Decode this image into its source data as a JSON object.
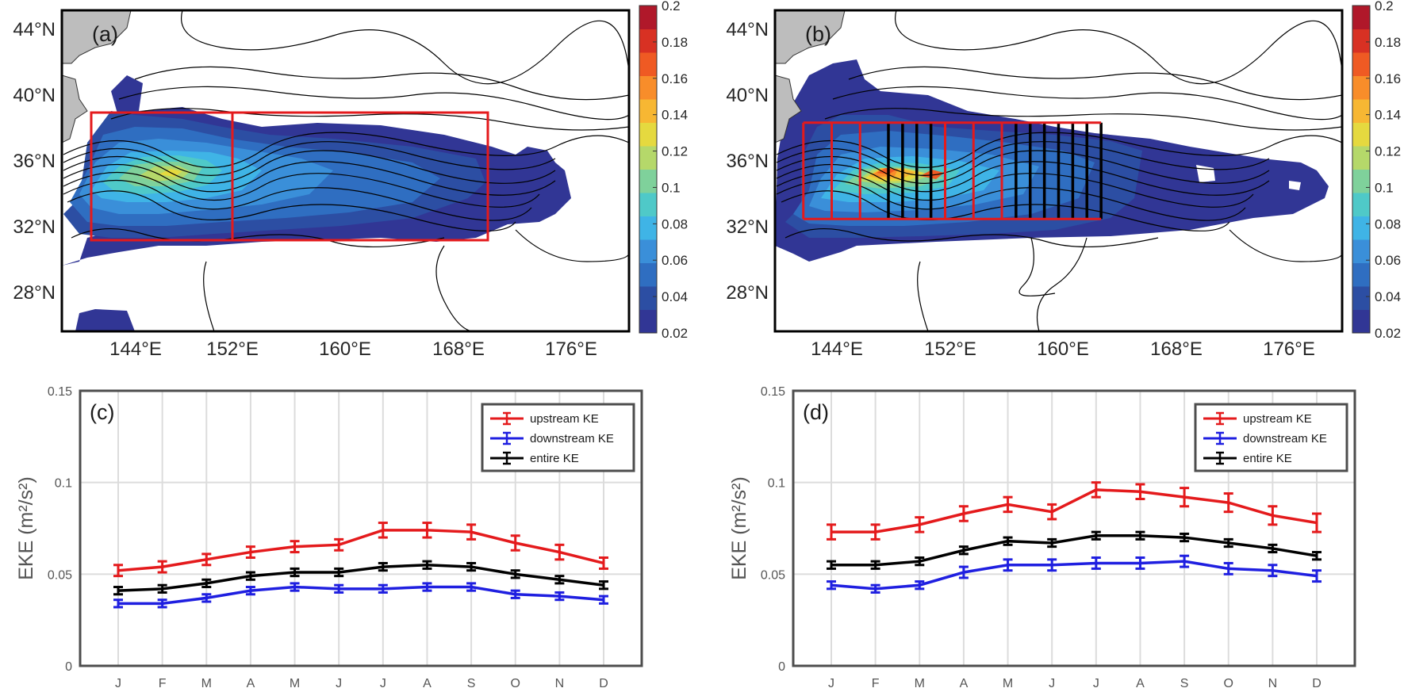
{
  "colors": {
    "upstream": "#e41a1c",
    "downstream": "#1f1fe0",
    "entire": "#000000",
    "box": "#e41a1c",
    "sections": "#000000",
    "land": "#bdbdbd",
    "frame_map": "#000000",
    "frame_line": "#4d4d4d",
    "colormap": [
      "#313695",
      "#2c4ea3",
      "#2f6ec1",
      "#3a8fd9",
      "#3fb4e6",
      "#4fc9c8",
      "#7fd19b",
      "#b5d86a",
      "#e5d93f",
      "#f7b733",
      "#f88d2a",
      "#ef5a23",
      "#d83123",
      "#b0182a"
    ]
  },
  "panels": {
    "a": {
      "tag": "(a)"
    },
    "b": {
      "tag": "(b)"
    },
    "c": {
      "tag": "(c)"
    },
    "d": {
      "tag": "(d)"
    }
  },
  "map_axes": {
    "lon_ticks": [
      "144°E",
      "152°E",
      "160°E",
      "168°E",
      "176°E"
    ],
    "lat_ticks": [
      "44°N",
      "40°N",
      "36°N",
      "32°N",
      "28°N"
    ],
    "colorbar_ticks": [
      "0.2",
      "0.18",
      "0.16",
      "0.14",
      "0.12",
      "0.1",
      "0.08",
      "0.06",
      "0.04",
      "0.02"
    ]
  },
  "chart_data": [
    {
      "panel": "a",
      "type": "heatmap",
      "tag": "(a)",
      "x_range_lon": [
        140,
        180
      ],
      "y_range_lat": [
        25,
        45
      ],
      "colorbar": {
        "min": 0.02,
        "max": 0.2,
        "step": 0.02
      },
      "note": "EKE map with contours; red boxes split upstream/downstream regions",
      "boxes": [
        {
          "lon": [
            142,
            152
          ],
          "lat": [
            31,
            39
          ]
        },
        {
          "lon": [
            152,
            170
          ],
          "lat": [
            31,
            39
          ]
        }
      ]
    },
    {
      "panel": "b",
      "type": "heatmap",
      "tag": "(b)",
      "x_range_lon": [
        140,
        180
      ],
      "y_range_lat": [
        25,
        45
      ],
      "colorbar": {
        "min": 0.02,
        "max": 0.2,
        "step": 0.02
      },
      "red_section_lons": [
        142,
        144,
        146,
        152,
        154,
        156
      ],
      "black_section_lons": [
        148,
        149,
        150,
        151,
        157,
        158,
        159,
        160,
        161,
        162,
        163
      ],
      "section_lat": [
        32,
        38
      ]
    },
    {
      "panel": "c",
      "type": "line",
      "tag": "(c)",
      "categories": [
        "J",
        "F",
        "M",
        "A",
        "M",
        "J",
        "J",
        "A",
        "S",
        "O",
        "N",
        "D"
      ],
      "ylabel": "EKE (m²/s²)",
      "ylim": [
        0,
        0.15
      ],
      "yticks": [
        "0",
        "0.05",
        "0.1",
        "0.15"
      ],
      "grid": true,
      "legend_position": "top-right",
      "series": [
        {
          "name": "upstream KE",
          "color_key": "upstream",
          "values": [
            0.052,
            0.054,
            0.058,
            0.062,
            0.065,
            0.066,
            0.074,
            0.074,
            0.073,
            0.067,
            0.062,
            0.056
          ],
          "errors": [
            0.003,
            0.003,
            0.003,
            0.003,
            0.003,
            0.003,
            0.004,
            0.004,
            0.004,
            0.004,
            0.004,
            0.003
          ]
        },
        {
          "name": "downstream KE",
          "color_key": "downstream",
          "values": [
            0.034,
            0.034,
            0.037,
            0.041,
            0.043,
            0.042,
            0.042,
            0.043,
            0.043,
            0.039,
            0.038,
            0.036
          ],
          "errors": [
            0.002,
            0.002,
            0.002,
            0.002,
            0.002,
            0.002,
            0.002,
            0.002,
            0.002,
            0.002,
            0.002,
            0.002
          ]
        },
        {
          "name": "entire KE",
          "color_key": "entire",
          "values": [
            0.041,
            0.042,
            0.045,
            0.049,
            0.051,
            0.051,
            0.054,
            0.055,
            0.054,
            0.05,
            0.047,
            0.044
          ],
          "errors": [
            0.002,
            0.002,
            0.002,
            0.002,
            0.002,
            0.002,
            0.002,
            0.002,
            0.002,
            0.002,
            0.002,
            0.002
          ]
        }
      ]
    },
    {
      "panel": "d",
      "type": "line",
      "tag": "(d)",
      "categories": [
        "J",
        "F",
        "M",
        "A",
        "M",
        "J",
        "J",
        "A",
        "S",
        "O",
        "N",
        "D"
      ],
      "ylabel": "EKE (m²/s²)",
      "ylim": [
        0,
        0.15
      ],
      "yticks": [
        "0",
        "0.05",
        "0.1",
        "0.15"
      ],
      "grid": true,
      "legend_position": "top-right",
      "series": [
        {
          "name": "upstream KE",
          "color_key": "upstream",
          "values": [
            0.073,
            0.073,
            0.077,
            0.083,
            0.088,
            0.084,
            0.096,
            0.095,
            0.092,
            0.089,
            0.082,
            0.078
          ],
          "errors": [
            0.004,
            0.004,
            0.004,
            0.004,
            0.004,
            0.004,
            0.004,
            0.004,
            0.005,
            0.005,
            0.005,
            0.005
          ]
        },
        {
          "name": "downstream KE",
          "color_key": "downstream",
          "values": [
            0.044,
            0.042,
            0.044,
            0.051,
            0.055,
            0.055,
            0.056,
            0.056,
            0.057,
            0.053,
            0.052,
            0.049
          ],
          "errors": [
            0.002,
            0.002,
            0.002,
            0.003,
            0.003,
            0.003,
            0.003,
            0.003,
            0.003,
            0.003,
            0.003,
            0.003
          ]
        },
        {
          "name": "entire KE",
          "color_key": "entire",
          "values": [
            0.055,
            0.055,
            0.057,
            0.063,
            0.068,
            0.067,
            0.071,
            0.071,
            0.07,
            0.067,
            0.064,
            0.06
          ],
          "errors": [
            0.002,
            0.002,
            0.002,
            0.002,
            0.002,
            0.002,
            0.002,
            0.002,
            0.002,
            0.002,
            0.002,
            0.002
          ]
        }
      ]
    }
  ]
}
